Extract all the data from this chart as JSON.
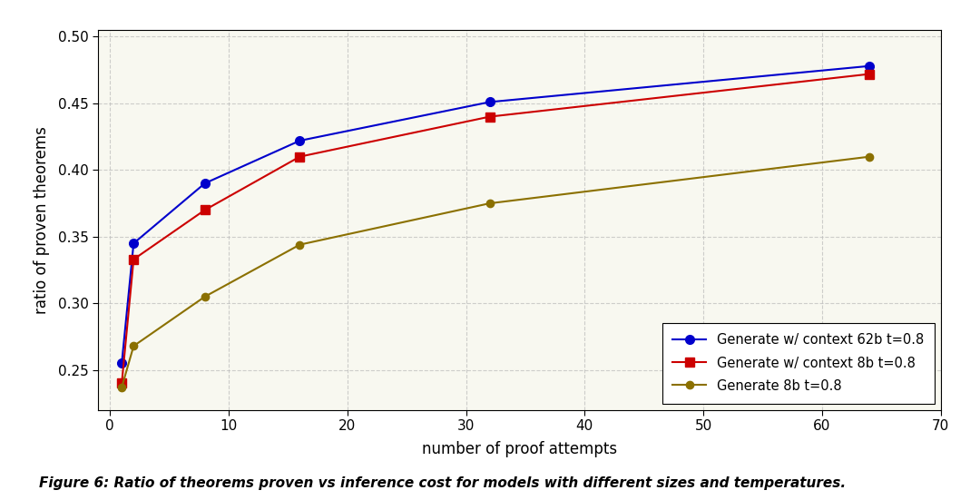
{
  "series": [
    {
      "label": "Generate w/ context 62b t=0.8",
      "x": [
        1,
        2,
        8,
        16,
        32,
        64
      ],
      "y": [
        0.255,
        0.345,
        0.39,
        0.422,
        0.451,
        0.478
      ],
      "color": "#0000CC",
      "marker": "o",
      "markersize": 7,
      "linewidth": 1.5
    },
    {
      "label": "Generate w/ context 8b t=0.8",
      "x": [
        1,
        2,
        8,
        16,
        32,
        64
      ],
      "y": [
        0.24,
        0.333,
        0.37,
        0.41,
        0.44,
        0.472
      ],
      "color": "#CC0000",
      "marker": "s",
      "markersize": 7,
      "linewidth": 1.5
    },
    {
      "label": "Generate 8b t=0.8",
      "x": [
        1,
        2,
        8,
        16,
        32,
        64
      ],
      "y": [
        0.237,
        0.268,
        0.305,
        0.344,
        0.375,
        0.41
      ],
      "color": "#8B7000",
      "marker": "o",
      "markersize": 6,
      "linewidth": 1.5
    }
  ],
  "xlabel": "number of proof attempts",
  "ylabel": "ratio of proven theorems",
  "xlim": [
    -1,
    70
  ],
  "ylim": [
    0.22,
    0.505
  ],
  "xticks": [
    0,
    10,
    20,
    30,
    40,
    50,
    60,
    70
  ],
  "yticks": [
    0.25,
    0.3,
    0.35,
    0.4,
    0.45,
    0.5
  ],
  "figure_caption": "Figure 6: Ratio of theorems proven vs inference cost for models with different sizes and temperatures.",
  "bg_color": "#FFFFFF",
  "plot_bg_color": "#F8F8F0",
  "grid": true,
  "grid_color": "#BBBBBB",
  "grid_linestyle": "--",
  "grid_alpha": 0.7
}
